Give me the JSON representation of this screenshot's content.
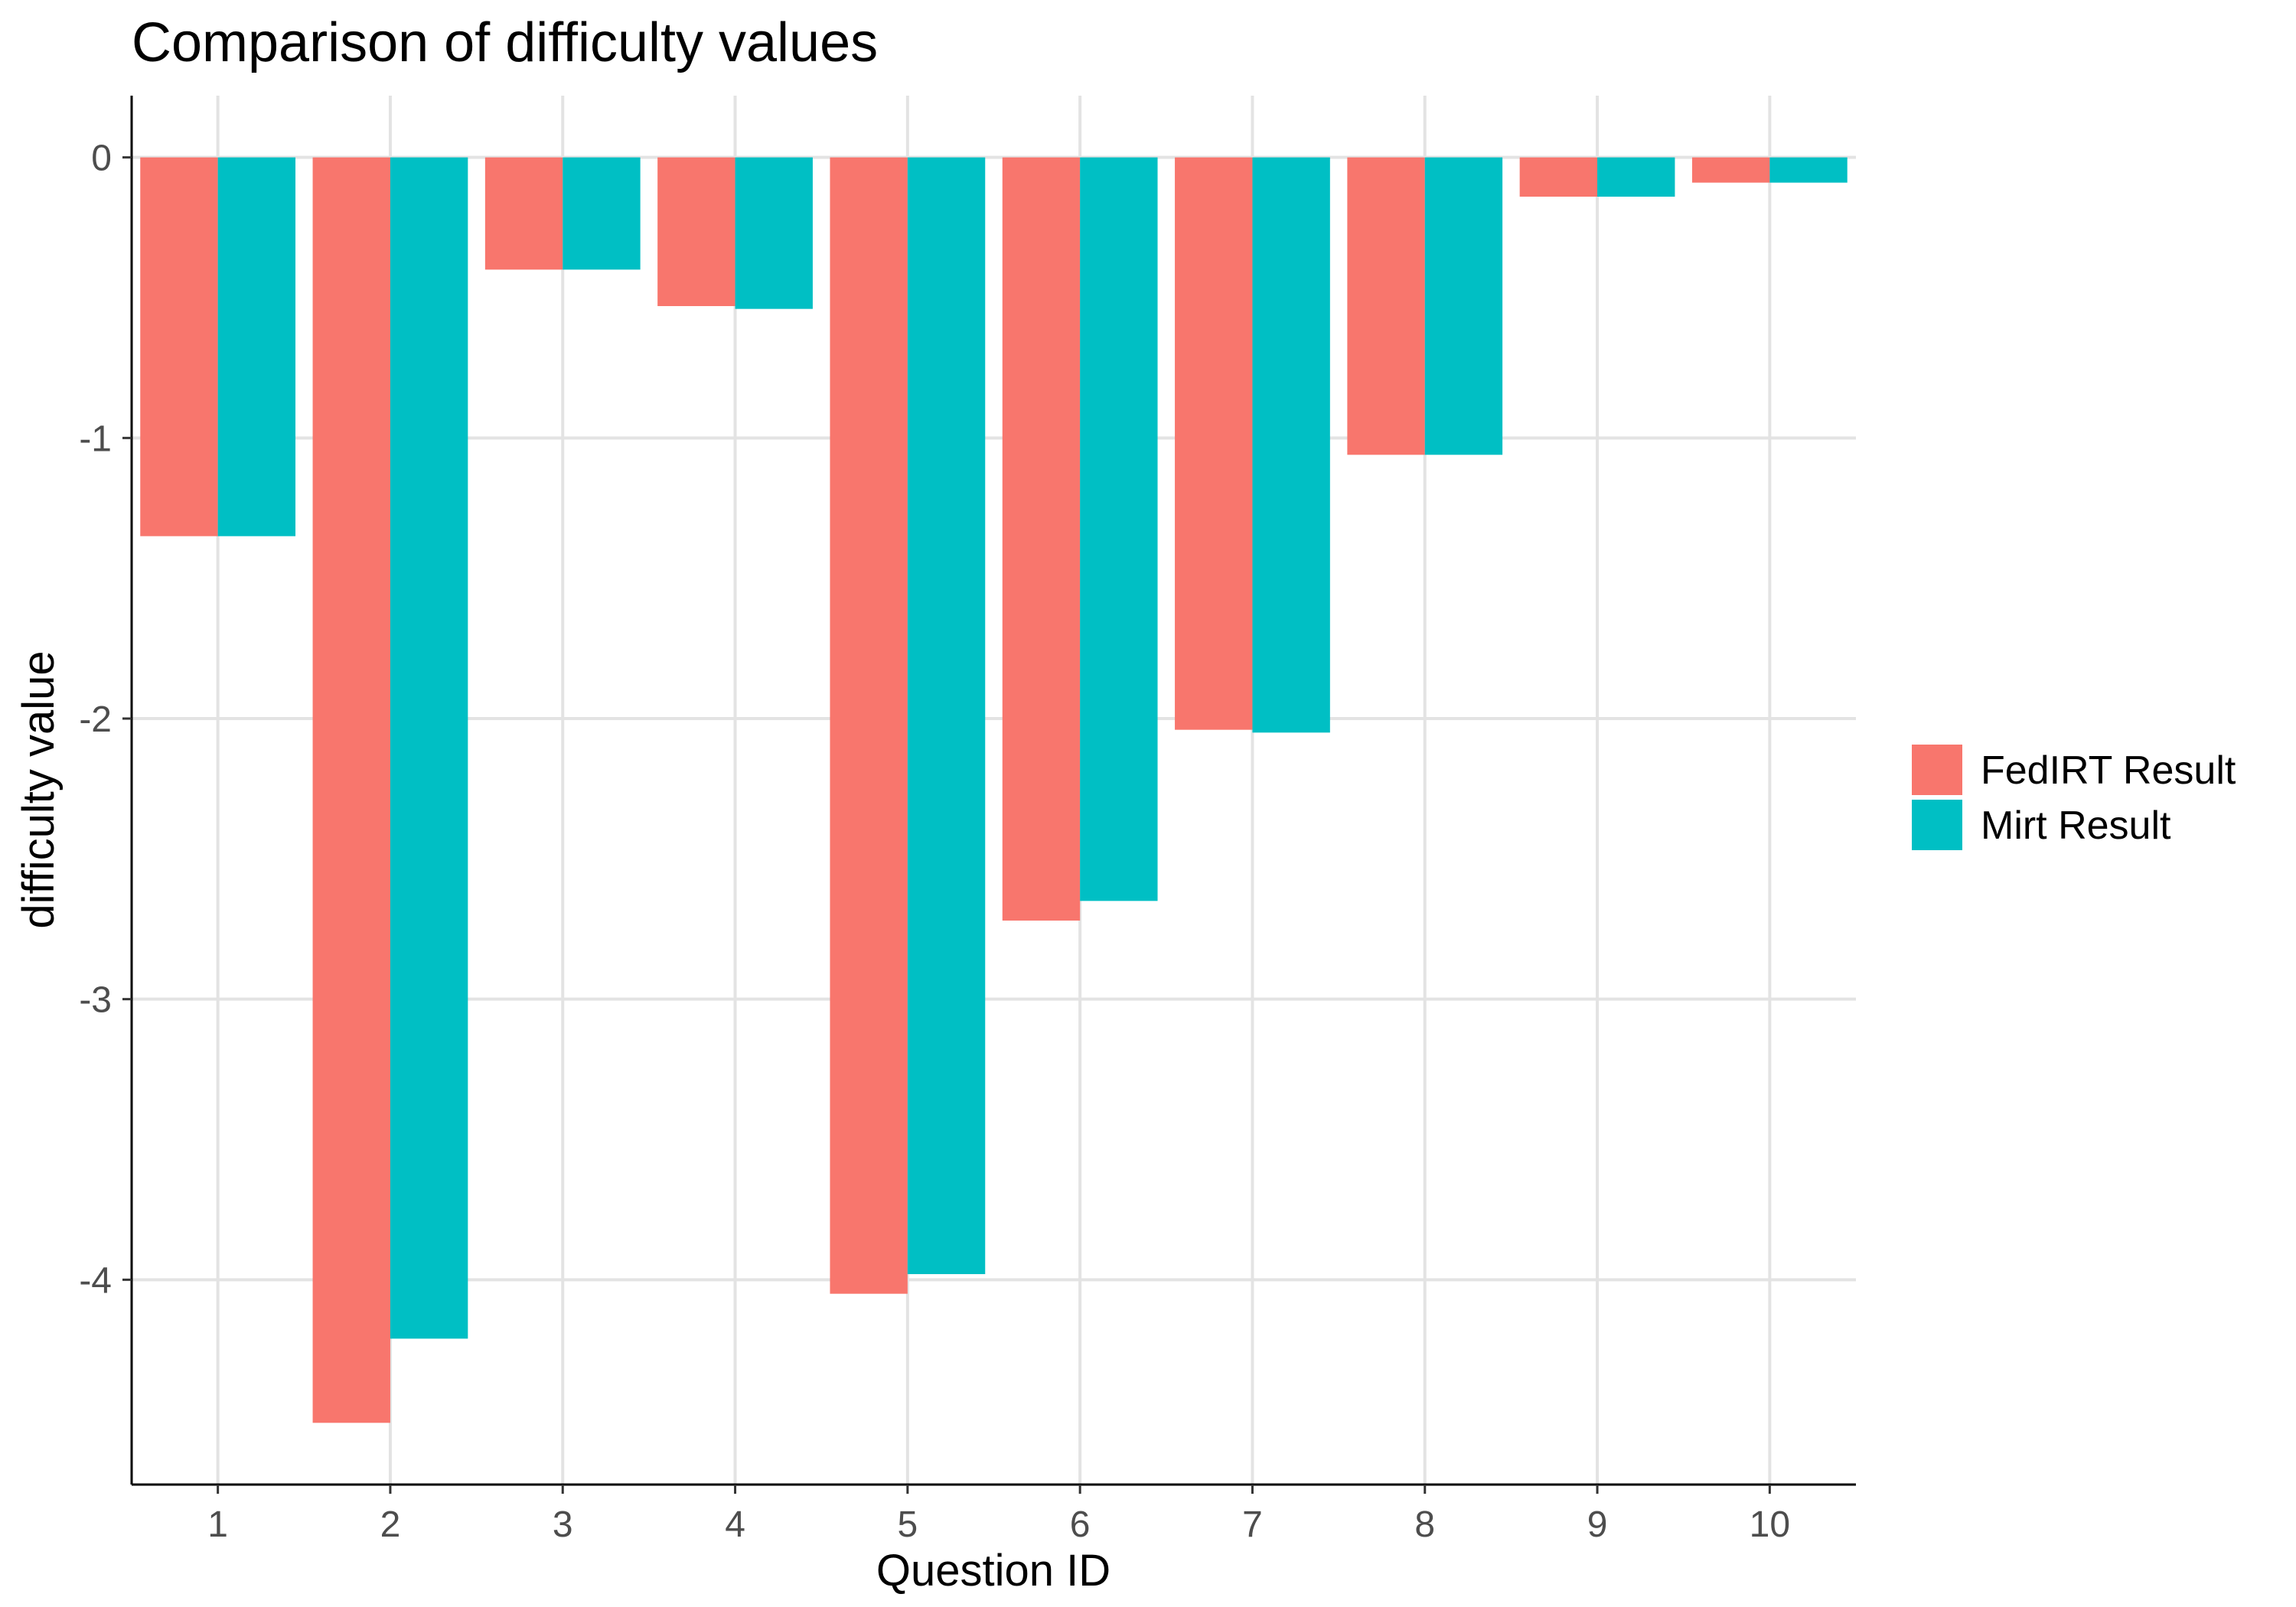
{
  "chart_data": {
    "type": "bar",
    "title": "Comparison of difficulty values",
    "xlabel": "Question ID",
    "ylabel": "difficulty value",
    "categories": [
      "1",
      "2",
      "3",
      "4",
      "5",
      "6",
      "7",
      "8",
      "9",
      "10"
    ],
    "series": [
      {
        "name": "FedIRT Result",
        "color": "#F8766D",
        "values": [
          -1.35,
          -4.51,
          -0.4,
          -0.53,
          -4.05,
          -2.72,
          -2.04,
          -1.06,
          -0.14,
          -0.09
        ]
      },
      {
        "name": "Mirt Result",
        "color": "#00BFC4",
        "values": [
          -1.35,
          -4.21,
          -0.4,
          -0.54,
          -3.98,
          -2.65,
          -2.05,
          -1.06,
          -0.14,
          -0.09
        ]
      }
    ],
    "yticks": [
      0,
      -1,
      -2,
      -3,
      -4
    ],
    "ytick_labels": [
      "0",
      "-1",
      "-2",
      "-3",
      "-4"
    ],
    "ylim": [
      -4.73,
      0.22
    ],
    "grid": true,
    "legend_position": "right"
  }
}
